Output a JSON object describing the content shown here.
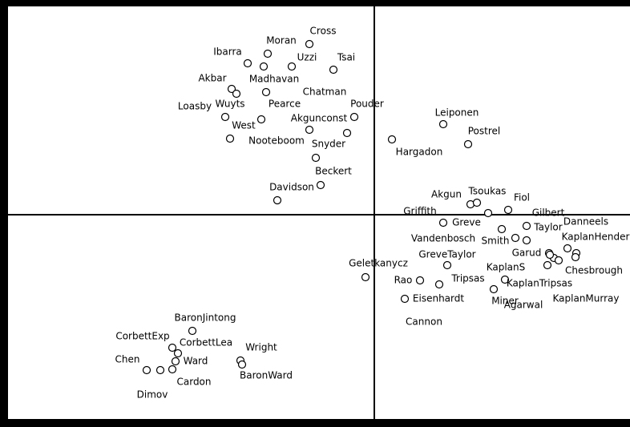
{
  "chart_data": {
    "type": "scatter",
    "labels": [
      "Cross",
      "Moran",
      "Ibarra",
      "Uzzi",
      "Tsai",
      "Madhavan",
      "Akbar",
      "Wuyts",
      "Pearce",
      "Loasby",
      "West",
      "Nooteboom",
      "Pouder",
      "Akgunconst",
      "Snyder",
      "Chatman",
      "Beckert",
      "Davidson",
      "Hargadon",
      "Leiponen",
      "Postrel",
      "Akgun",
      "Tsoukas",
      "Fiol",
      "Griffith",
      "Gilbert",
      "Greve",
      "Taylor",
      "Danneels",
      "Vandenbosch",
      "Smith",
      "KaplanHender",
      "Garud",
      "GreveTaylor",
      "Chesbrough",
      "KaplanS",
      "Geletkanycz",
      "Rao",
      "Tripsas",
      "KaplanTripsas",
      "Eisenhardt",
      "Miner",
      "Agarwal",
      "KaplanMurray",
      "Cannon",
      "BaronJintong",
      "CorbettExp",
      "CorbettLea",
      "Wright",
      "Ward",
      "BaronWard",
      "Chen",
      "Cardon",
      "Dimov"
    ],
    "x": [
      -81,
      -133,
      -158,
      -103,
      -51,
      -138,
      -178,
      -172,
      -135,
      -186,
      -141,
      -180,
      -25,
      -81,
      -34,
      -73,
      -67,
      -121,
      22,
      86,
      117,
      120,
      128,
      167,
      142,
      190,
      86,
      159,
      241,
      176,
      190,
      252,
      218,
      91,
      216,
      163,
      -11,
      57,
      81,
      149,
      38,
      224,
      219,
      251,
      230,
      -227,
      -252,
      -245,
      -167,
      -248,
      -165,
      -284,
      -252,
      -267
    ],
    "values": [
      213,
      201,
      189,
      185,
      181,
      185,
      157,
      151,
      153,
      122,
      119,
      95,
      122,
      106,
      102,
      71,
      37,
      18,
      94,
      113,
      88,
      13,
      15,
      6,
      2,
      -14,
      -10,
      -18,
      -42,
      -29,
      -32,
      -48,
      -48,
      -63,
      -63,
      -81,
      -78,
      -82,
      -87,
      -93,
      -105,
      -54,
      -50,
      -53,
      -57,
      -145,
      -166,
      -173,
      -182,
      -183,
      -187,
      -194,
      -193,
      -194
    ],
    "xlim": [
      -457,
      319
    ],
    "ylim": [
      -255,
      260
    ],
    "color": "#000000"
  }
}
